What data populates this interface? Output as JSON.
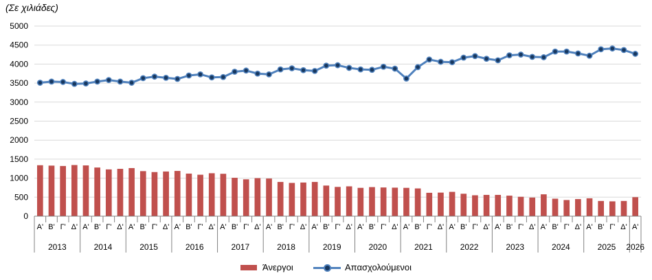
{
  "chart_data": {
    "type": "bar",
    "unit_label": "(Σε χιλιάδες)",
    "ylim": [
      0,
      5000
    ],
    "yticks": [
      "0",
      "500",
      "1000",
      "1500",
      "2000",
      "2500",
      "3000",
      "3500",
      "4000",
      "4500",
      "5000"
    ],
    "grid": true,
    "legend_position": "bottom",
    "quarters": [
      "Α'",
      "Β'",
      "Γ'",
      "Δ'",
      "Α'",
      "Β'",
      "Γ'",
      "Δ'",
      "Α'",
      "Β'",
      "Γ'",
      "Δ'",
      "Α'",
      "Β'",
      "Γ'",
      "Δ'",
      "Α'",
      "Β'",
      "Γ'",
      "Δ'",
      "Α'",
      "Β'",
      "Γ'",
      "Δ'",
      "Α'",
      "Β'",
      "Γ'",
      "Δ'",
      "Α'",
      "Β'",
      "Γ'",
      "Δ'",
      "Α'",
      "Β'",
      "Γ'",
      "Δ'",
      "Α'",
      "Β'",
      "Γ'",
      "Δ'",
      "Α'",
      "Β'",
      "Γ'",
      "Δ'",
      "Α'",
      "Β'",
      "Γ'",
      "Δ'",
      "Α'",
      "Β'",
      "Γ'",
      "Δ'",
      "Α'"
    ],
    "years": [
      "2013",
      "2014",
      "2015",
      "2016",
      "2017",
      "2018",
      "2019",
      "2020",
      "2021",
      "2022",
      "2023",
      "2024",
      "2025",
      "2026"
    ],
    "series": [
      {
        "name": "Άνεργοι",
        "type": "bar",
        "color": "#C0504D",
        "values": [
          1340,
          1330,
          1320,
          1345,
          1335,
          1280,
          1230,
          1245,
          1265,
          1185,
          1160,
          1175,
          1190,
          1120,
          1090,
          1130,
          1115,
          1010,
          970,
          1000,
          990,
          900,
          875,
          885,
          900,
          805,
          770,
          785,
          745,
          765,
          755,
          750,
          745,
          730,
          615,
          620,
          640,
          590,
          550,
          560,
          560,
          540,
          510,
          490,
          575,
          460,
          425,
          450,
          470,
          400,
          390,
          400,
          500
        ]
      },
      {
        "name": "Απασχολούμενοι",
        "type": "line",
        "color": "#4F81BD",
        "marker_color": "#17375E",
        "values": [
          3510,
          3540,
          3530,
          3480,
          3490,
          3540,
          3580,
          3540,
          3510,
          3630,
          3670,
          3640,
          3610,
          3700,
          3730,
          3650,
          3660,
          3800,
          3830,
          3750,
          3730,
          3860,
          3890,
          3840,
          3820,
          3960,
          3970,
          3900,
          3860,
          3850,
          3930,
          3880,
          3620,
          3920,
          4120,
          4060,
          4050,
          4170,
          4210,
          4140,
          4100,
          4230,
          4250,
          4190,
          4180,
          4330,
          4330,
          4280,
          4220,
          4390,
          4410,
          4370,
          4270
        ]
      }
    ]
  }
}
